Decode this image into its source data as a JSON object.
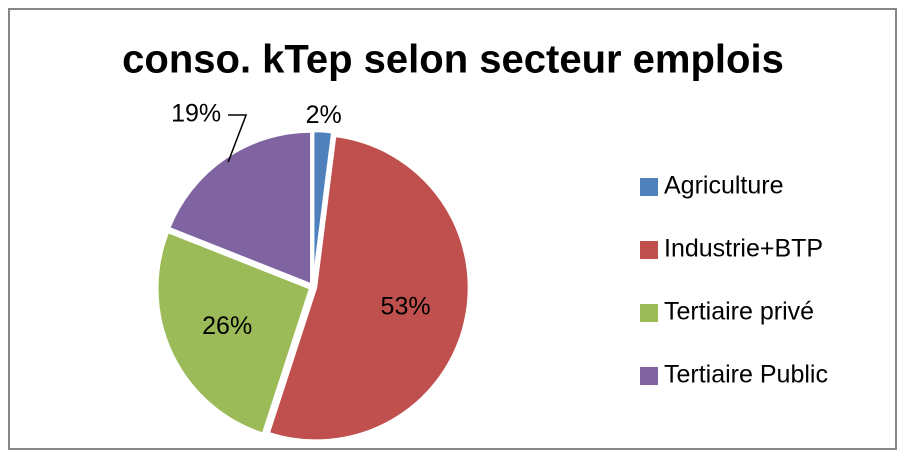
{
  "chart_data": {
    "type": "pie",
    "title": "conso. kTep selon secteur emplois",
    "categories": [
      "Agriculture",
      "Industrie+BTP",
      "Tertiaire privé",
      "Tertiaire Public"
    ],
    "values": [
      2,
      53,
      26,
      19
    ],
    "value_labels": [
      "2%",
      "53%",
      "26%",
      "19%"
    ],
    "colors": [
      "#4f81bd",
      "#c0504d",
      "#9bbb59",
      "#8064a2"
    ],
    "legend": "right"
  }
}
